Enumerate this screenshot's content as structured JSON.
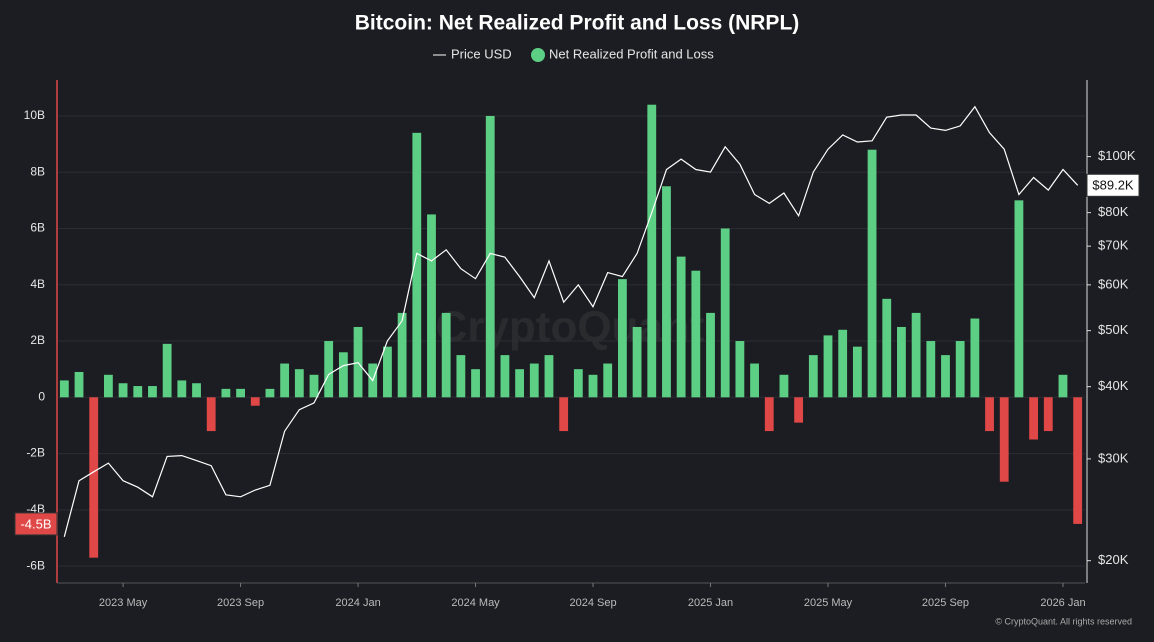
{
  "chart_data": {
    "type": "bar",
    "title": "Bitcoin: Net Realized Profit and Loss (NRPL)",
    "watermark": "CryptoQuant",
    "copyright": "© CryptoQuant. All rights reserved",
    "categories": [
      null,
      null,
      null,
      null,
      "2023 May",
      null,
      null,
      null,
      null,
      null,
      null,
      null,
      "2023 Sep",
      null,
      null,
      null,
      null,
      null,
      null,
      null,
      "2024 Jan",
      null,
      null,
      null,
      null,
      null,
      null,
      null,
      "2024 May",
      null,
      null,
      null,
      null,
      null,
      null,
      null,
      "2024 Sep",
      null,
      null,
      null,
      null,
      null,
      null,
      null,
      "2025 Jan",
      null,
      null,
      null,
      null,
      null,
      null,
      null,
      "2025 May",
      null,
      null,
      null,
      null,
      null,
      null,
      null,
      "2025 Sep",
      null,
      null,
      null,
      null,
      null,
      null,
      null,
      "2026 Jan",
      null
    ],
    "series": [
      {
        "name": "Net Realized Profit and Loss",
        "type": "bar",
        "color": "#5ccf85",
        "negative_color": "#e04848",
        "values": [
          0.6,
          0.9,
          -5.7,
          0.8,
          0.5,
          0.4,
          0.4,
          1.9,
          0.6,
          0.5,
          -1.2,
          0.3,
          0.3,
          -0.3,
          0.3,
          1.2,
          1.0,
          0.8,
          2.0,
          1.6,
          2.5,
          1.2,
          1.8,
          3.0,
          9.4,
          6.5,
          3.0,
          1.5,
          1.0,
          10.0,
          1.5,
          1.0,
          1.2,
          1.5,
          -1.2,
          1.0,
          0.8,
          1.2,
          4.2,
          2.5,
          10.4,
          7.5,
          5.0,
          4.5,
          3.0,
          6.0,
          2.0,
          1.2,
          -1.2,
          0.8,
          -0.9,
          1.5,
          2.2,
          2.4,
          1.8,
          8.8,
          3.5,
          2.5,
          3.0,
          2.0,
          1.5,
          2.0,
          2.8,
          -1.2,
          -3.0,
          7.0,
          -1.5,
          -1.2,
          0.8,
          -4.5
        ]
      },
      {
        "name": "Price USD",
        "type": "line",
        "axis": "y2",
        "color": "#ffffff",
        "values": [
          22000,
          27500,
          28500,
          29500,
          27500,
          26800,
          25800,
          30300,
          30400,
          29800,
          29200,
          26000,
          25800,
          26500,
          27000,
          33500,
          36500,
          37500,
          42000,
          43500,
          44000,
          41000,
          48000,
          52000,
          68000,
          66000,
          69000,
          64000,
          61500,
          68000,
          67000,
          62000,
          57000,
          66000,
          56000,
          60000,
          55000,
          63000,
          62000,
          68000,
          80000,
          95000,
          99000,
          95000,
          94000,
          104000,
          97000,
          86000,
          83000,
          86500,
          79000,
          94000,
          103000,
          109000,
          106000,
          106500,
          117000,
          118000,
          118000,
          112000,
          111000,
          113000,
          122000,
          110000,
          103000,
          86000,
          92000,
          87500,
          95000,
          89200
        ]
      }
    ],
    "ylim": [
      -6.6,
      11.1
    ],
    "yticks": [
      {
        "value": -6,
        "label": "-6B"
      },
      {
        "value": -4,
        "label": "-4B"
      },
      {
        "value": -2,
        "label": "-2B"
      },
      0,
      {
        "value": 2,
        "label": "2B"
      },
      {
        "value": 4,
        "label": "4B"
      },
      {
        "value": 6,
        "label": "6B"
      },
      {
        "value": 8,
        "label": "8B"
      },
      {
        "value": 10,
        "label": "10B"
      }
    ],
    "y2lim": [
      18300,
      133000
    ],
    "y2log": true,
    "y2ticks": [
      {
        "value": 20000,
        "label": "$20K"
      },
      {
        "value": 30000,
        "label": "$30K"
      },
      {
        "value": 40000,
        "label": "$40K"
      },
      {
        "value": 50000,
        "label": "$50K"
      },
      {
        "value": 60000,
        "label": "$60K"
      },
      {
        "value": 70000,
        "label": "$70K"
      },
      {
        "value": 80000,
        "label": "$80K"
      },
      {
        "value": 100000,
        "label": "$100K"
      }
    ],
    "last_value_labels": [
      {
        "value": -4.5,
        "label": "-4.5B",
        "color": "#e04848"
      },
      {
        "value": 89200,
        "label": "$89.2K",
        "axis": "y2",
        "color": "#ffffff"
      }
    ],
    "grid": true
  }
}
